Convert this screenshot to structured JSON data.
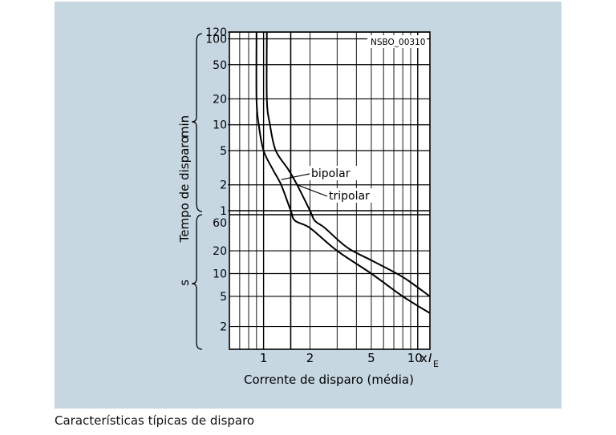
{
  "caption": "Características típicas de disparo",
  "chart_data": {
    "type": "line",
    "code": "NSBO_00310",
    "xlabel": "Corrente de disparo (média)",
    "ylabel": "Tempo de disparo",
    "x_unit_prefix": "x",
    "x_unit_symbol": "I",
    "x_unit_subscript": "E",
    "x_scale": "log",
    "xlim": [
      0.6,
      12
    ],
    "x_ticks": [
      {
        "value": 1,
        "label": "1"
      },
      {
        "value": 2,
        "label": "2"
      },
      {
        "value": 5,
        "label": "5"
      },
      {
        "value": 10,
        "label": "10"
      }
    ],
    "y_scale": "log",
    "y_sections": [
      {
        "unit": "min",
        "range": [
          1,
          120
        ],
        "ticks": [
          {
            "value": 120,
            "label": "120"
          },
          {
            "value": 100,
            "label": "100"
          },
          {
            "value": 50,
            "label": "50"
          },
          {
            "value": 20,
            "label": "20"
          },
          {
            "value": 10,
            "label": "10"
          },
          {
            "value": 5,
            "label": "5"
          },
          {
            "value": 2,
            "label": "2"
          },
          {
            "value": 1,
            "label": "1"
          }
        ]
      },
      {
        "unit": "s",
        "range": [
          1,
          60
        ],
        "ticks": [
          {
            "value": 60,
            "label": "60"
          },
          {
            "value": 20,
            "label": "20"
          },
          {
            "value": 10,
            "label": "10"
          },
          {
            "value": 5,
            "label": "5"
          },
          {
            "value": 2,
            "label": "2"
          }
        ]
      }
    ],
    "series": [
      {
        "name": "bipolar",
        "points": [
          {
            "x": 0.9,
            "y_min": 120
          },
          {
            "x": 0.9,
            "y_min": 20
          },
          {
            "x": 0.93,
            "y_min": 10
          },
          {
            "x": 1.0,
            "y_min": 5
          },
          {
            "x": 1.15,
            "y_min": 3
          },
          {
            "x": 1.3,
            "y_min": 2
          },
          {
            "x": 1.5,
            "y_min": 1
          },
          {
            "x": 1.6,
            "y_s": 50
          },
          {
            "x": 2.0,
            "y_s": 40
          },
          {
            "x": 3.0,
            "y_s": 20
          },
          {
            "x": 5.0,
            "y_s": 10
          },
          {
            "x": 8.0,
            "y_s": 5
          },
          {
            "x": 12.0,
            "y_s": 3
          }
        ]
      },
      {
        "name": "tripolar",
        "points": [
          {
            "x": 1.05,
            "y_min": 120
          },
          {
            "x": 1.05,
            "y_min": 20
          },
          {
            "x": 1.1,
            "y_min": 10
          },
          {
            "x": 1.2,
            "y_min": 5
          },
          {
            "x": 1.45,
            "y_min": 3
          },
          {
            "x": 1.65,
            "y_min": 2
          },
          {
            "x": 2.0,
            "y_min": 1
          },
          {
            "x": 2.15,
            "y_s": 50
          },
          {
            "x": 2.5,
            "y_s": 40
          },
          {
            "x": 3.5,
            "y_s": 22
          },
          {
            "x": 5.0,
            "y_s": 15
          },
          {
            "x": 8.0,
            "y_s": 9
          },
          {
            "x": 12.0,
            "y_s": 5
          }
        ]
      }
    ],
    "grid": true
  }
}
